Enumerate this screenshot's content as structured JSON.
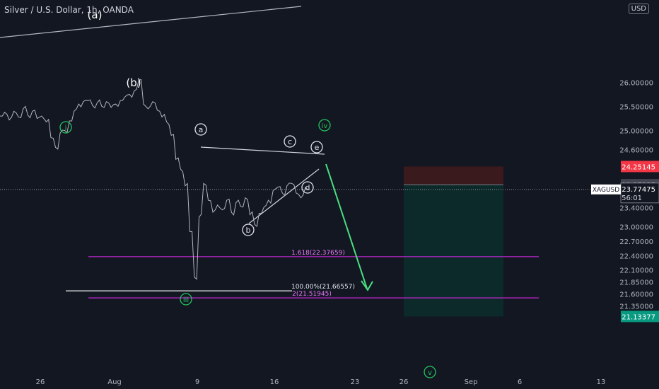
{
  "header": {
    "title": "Silver / U.S. Dollar, 1h, OANDA",
    "currency": "USD"
  },
  "symbol_tag": "XAGUSD",
  "price_tags": {
    "stop": "24.25145",
    "entry": "23.87237",
    "current": "23.77475",
    "countdown": "56:01",
    "target": "21.13377"
  },
  "colors": {
    "background": "#131722",
    "price_line": "#b2b5be",
    "wave_green": "#22c55e",
    "fib_magenta": "#c026d3",
    "stop_zone": "#3a1a1c",
    "target_zone": "#0d2a2a",
    "stop_tag": "#f23645",
    "target_tag": "#089981"
  },
  "chart_data": {
    "type": "line",
    "title": "Silver / U.S. Dollar, 1h, OANDA",
    "ylim": [
      21.1,
      26.1
    ],
    "y_ticks": [
      "26.00000",
      "25.50000",
      "25.00000",
      "24.60000",
      "24.25145",
      "23.87237",
      "23.40000",
      "23.00000",
      "22.70000",
      "22.40000",
      "22.10000",
      "21.85000",
      "21.60000",
      "21.35000",
      "21.13377"
    ],
    "x_ticks": [
      "26",
      "Aug",
      "9",
      "16",
      "23",
      "26",
      "Sep",
      "6",
      "13"
    ],
    "grid": false,
    "series": [
      {
        "values": [
          25.3,
          25.38,
          25.22,
          25.4,
          25.28,
          25.45,
          25.32,
          25.4,
          25.25,
          25.3,
          25.18,
          24.85,
          24.65,
          24.95,
          25.0,
          25.2,
          25.4,
          25.55,
          25.6,
          25.62,
          25.52,
          25.58,
          25.5,
          25.6,
          25.48,
          25.55,
          25.62,
          25.7,
          25.75,
          25.82,
          26.05,
          25.55,
          25.45,
          25.6,
          25.42,
          25.28,
          25.18,
          24.9,
          24.4,
          24.2,
          23.85,
          22.9,
          21.95,
          23.2,
          23.9,
          23.55,
          23.3,
          23.45,
          23.35,
          23.55,
          23.3,
          23.5,
          23.42,
          23.6,
          23.25,
          23.05,
          23.28,
          23.4,
          23.55,
          23.75,
          23.82,
          23.7,
          23.85,
          23.9,
          23.7,
          23.6,
          23.82
        ]
      }
    ],
    "wave_labels": [
      {
        "text": "(a)"
      },
      {
        "text": "(b)"
      },
      {
        "text": "i"
      },
      {
        "text": "iii"
      },
      {
        "text": "iv"
      },
      {
        "text": "v"
      },
      {
        "text": "a"
      },
      {
        "text": "b"
      },
      {
        "text": "c"
      },
      {
        "text": "d"
      },
      {
        "text": "e"
      }
    ],
    "fib_levels": [
      {
        "label": "1.618(22.37659)",
        "value": 22.37659
      },
      {
        "label": "100.00%(21.66557)",
        "value": 21.66557
      },
      {
        "label": "2(21.51945)",
        "value": 21.51945
      }
    ],
    "position": {
      "stop": 24.25145,
      "entry": 23.87237,
      "target": 21.13377,
      "current": 23.77475
    }
  }
}
